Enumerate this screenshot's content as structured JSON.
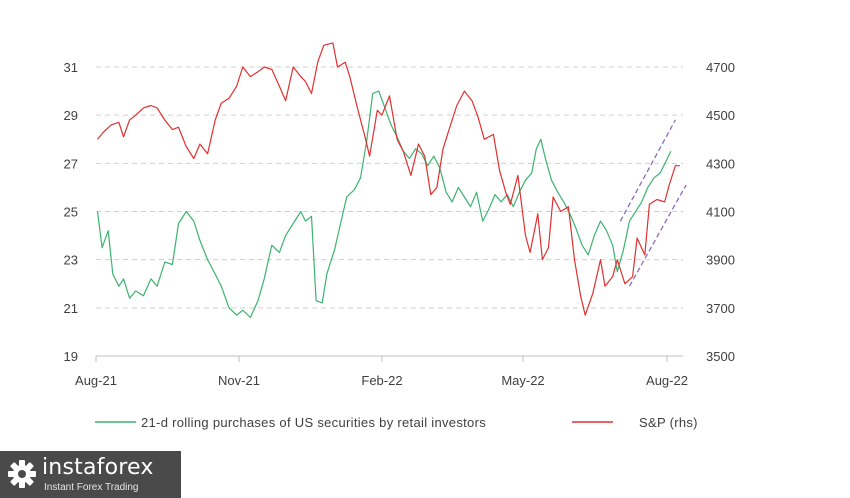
{
  "chart_data": {
    "type": "line",
    "title": "",
    "xlabel": "",
    "x_ticks": [
      "Aug-21",
      "Nov-21",
      "Feb-22",
      "May-22",
      "Aug-22"
    ],
    "y_left": {
      "label": "",
      "ylim": [
        19,
        31
      ],
      "ticks": [
        "19",
        "21",
        "23",
        "25",
        "27",
        "29",
        "31"
      ]
    },
    "y_right": {
      "label": "",
      "ylim": [
        3500,
        4700
      ],
      "ticks": [
        "3500",
        "3700",
        "3900",
        "4100",
        "4300",
        "4500",
        "4700"
      ]
    },
    "grid": "horizontal dashed",
    "legend_position": "bottom",
    "series": [
      {
        "name": "21-d rolling purchases of US securities by retail investors",
        "axis": "left",
        "color": "#3cb371",
        "points": [
          [
            "2021-08-02",
            25.0
          ],
          [
            "2021-08-05",
            23.5
          ],
          [
            "2021-08-09",
            24.2
          ],
          [
            "2021-08-12",
            22.4
          ],
          [
            "2021-08-16",
            21.9
          ],
          [
            "2021-08-19",
            22.2
          ],
          [
            "2021-08-23",
            21.4
          ],
          [
            "2021-08-27",
            21.7
          ],
          [
            "2021-09-01",
            21.5
          ],
          [
            "2021-09-06",
            22.2
          ],
          [
            "2021-09-10",
            21.9
          ],
          [
            "2021-09-15",
            22.9
          ],
          [
            "2021-09-20",
            22.8
          ],
          [
            "2021-09-24",
            24.5
          ],
          [
            "2021-09-29",
            25.0
          ],
          [
            "2021-10-04",
            24.6
          ],
          [
            "2021-10-08",
            23.8
          ],
          [
            "2021-10-13",
            23.0
          ],
          [
            "2021-10-18",
            22.4
          ],
          [
            "2021-10-22",
            21.9
          ],
          [
            "2021-10-27",
            21.0
          ],
          [
            "2021-11-01",
            20.7
          ],
          [
            "2021-11-05",
            20.9
          ],
          [
            "2021-11-10",
            20.6
          ],
          [
            "2021-11-15",
            21.3
          ],
          [
            "2021-11-19",
            22.2
          ],
          [
            "2021-11-24",
            23.6
          ],
          [
            "2021-11-29",
            23.3
          ],
          [
            "2021-12-03",
            24.0
          ],
          [
            "2021-12-08",
            24.5
          ],
          [
            "2021-12-13",
            25.0
          ],
          [
            "2021-12-16",
            24.6
          ],
          [
            "2021-12-20",
            24.8
          ],
          [
            "2021-12-23",
            21.3
          ],
          [
            "2021-12-27",
            21.2
          ],
          [
            "2021-12-30",
            22.4
          ],
          [
            "2022-01-04",
            23.4
          ],
          [
            "2022-01-08",
            24.5
          ],
          [
            "2022-01-12",
            25.6
          ],
          [
            "2022-01-17",
            25.9
          ],
          [
            "2022-01-21",
            26.4
          ],
          [
            "2022-01-25",
            27.9
          ],
          [
            "2022-01-29",
            29.9
          ],
          [
            "2022-02-02",
            30.0
          ],
          [
            "2022-02-06",
            29.3
          ],
          [
            "2022-02-10",
            28.6
          ],
          [
            "2022-02-14",
            28.1
          ],
          [
            "2022-02-18",
            27.5
          ],
          [
            "2022-02-22",
            27.2
          ],
          [
            "2022-02-26",
            27.6
          ],
          [
            "2022-03-02",
            27.4
          ],
          [
            "2022-03-06",
            26.9
          ],
          [
            "2022-03-10",
            27.3
          ],
          [
            "2022-03-14",
            26.8
          ],
          [
            "2022-03-18",
            25.8
          ],
          [
            "2022-03-22",
            25.4
          ],
          [
            "2022-03-26",
            26.0
          ],
          [
            "2022-03-30",
            25.6
          ],
          [
            "2022-04-03",
            25.2
          ],
          [
            "2022-04-07",
            25.8
          ],
          [
            "2022-04-11",
            24.6
          ],
          [
            "2022-04-15",
            25.1
          ],
          [
            "2022-04-19",
            25.7
          ],
          [
            "2022-04-23",
            25.4
          ],
          [
            "2022-04-27",
            25.7
          ],
          [
            "2022-05-01",
            25.2
          ],
          [
            "2022-05-05",
            25.8
          ],
          [
            "2022-05-09",
            26.3
          ],
          [
            "2022-05-13",
            26.6
          ],
          [
            "2022-05-16",
            27.6
          ],
          [
            "2022-05-19",
            28.0
          ],
          [
            "2022-05-22",
            27.2
          ],
          [
            "2022-05-26",
            26.3
          ],
          [
            "2022-05-30",
            25.8
          ],
          [
            "2022-06-03",
            25.4
          ],
          [
            "2022-06-07",
            24.9
          ],
          [
            "2022-06-11",
            24.3
          ],
          [
            "2022-06-15",
            23.6
          ],
          [
            "2022-06-19",
            23.2
          ],
          [
            "2022-06-23",
            24.0
          ],
          [
            "2022-06-27",
            24.6
          ],
          [
            "2022-07-01",
            24.2
          ],
          [
            "2022-07-05",
            23.6
          ],
          [
            "2022-07-08",
            22.5
          ],
          [
            "2022-07-12",
            23.4
          ],
          [
            "2022-07-16",
            24.6
          ],
          [
            "2022-07-20",
            25.0
          ],
          [
            "2022-07-24",
            25.4
          ],
          [
            "2022-07-28",
            26.0
          ],
          [
            "2022-08-01",
            26.4
          ],
          [
            "2022-08-05",
            26.6
          ],
          [
            "2022-08-09",
            27.1
          ],
          [
            "2022-08-12",
            27.5
          ]
        ]
      },
      {
        "name": "S&P (rhs)",
        "axis": "right",
        "color": "#e03030",
        "points": [
          [
            "2021-08-02",
            4400
          ],
          [
            "2021-08-06",
            4430
          ],
          [
            "2021-08-11",
            4460
          ],
          [
            "2021-08-16",
            4470
          ],
          [
            "2021-08-19",
            4410
          ],
          [
            "2021-08-23",
            4480
          ],
          [
            "2021-08-27",
            4500
          ],
          [
            "2021-09-01",
            4530
          ],
          [
            "2021-09-06",
            4540
          ],
          [
            "2021-09-10",
            4530
          ],
          [
            "2021-09-15",
            4480
          ],
          [
            "2021-09-20",
            4440
          ],
          [
            "2021-09-24",
            4450
          ],
          [
            "2021-09-29",
            4370
          ],
          [
            "2021-10-04",
            4320
          ],
          [
            "2021-10-08",
            4380
          ],
          [
            "2021-10-13",
            4340
          ],
          [
            "2021-10-18",
            4480
          ],
          [
            "2021-10-22",
            4550
          ],
          [
            "2021-10-27",
            4570
          ],
          [
            "2021-11-01",
            4620
          ],
          [
            "2021-11-05",
            4700
          ],
          [
            "2021-11-10",
            4660
          ],
          [
            "2021-11-15",
            4680
          ],
          [
            "2021-11-19",
            4700
          ],
          [
            "2021-11-24",
            4690
          ],
          [
            "2021-11-29",
            4620
          ],
          [
            "2021-12-03",
            4560
          ],
          [
            "2021-12-08",
            4700
          ],
          [
            "2021-12-13",
            4660
          ],
          [
            "2021-12-16",
            4640
          ],
          [
            "2021-12-20",
            4590
          ],
          [
            "2021-12-24",
            4720
          ],
          [
            "2021-12-28",
            4790
          ],
          [
            "2022-01-03",
            4800
          ],
          [
            "2022-01-06",
            4700
          ],
          [
            "2022-01-11",
            4720
          ],
          [
            "2022-01-14",
            4660
          ],
          [
            "2022-01-19",
            4530
          ],
          [
            "2022-01-24",
            4410
          ],
          [
            "2022-01-27",
            4330
          ],
          [
            "2022-02-01",
            4520
          ],
          [
            "2022-02-04",
            4500
          ],
          [
            "2022-02-09",
            4580
          ],
          [
            "2022-02-14",
            4400
          ],
          [
            "2022-02-18",
            4350
          ],
          [
            "2022-02-23",
            4250
          ],
          [
            "2022-02-28",
            4380
          ],
          [
            "2022-03-04",
            4330
          ],
          [
            "2022-03-08",
            4170
          ],
          [
            "2022-03-12",
            4200
          ],
          [
            "2022-03-16",
            4360
          ],
          [
            "2022-03-21",
            4460
          ],
          [
            "2022-03-25",
            4540
          ],
          [
            "2022-03-30",
            4600
          ],
          [
            "2022-04-04",
            4560
          ],
          [
            "2022-04-08",
            4490
          ],
          [
            "2022-04-12",
            4400
          ],
          [
            "2022-04-18",
            4420
          ],
          [
            "2022-04-22",
            4270
          ],
          [
            "2022-04-26",
            4180
          ],
          [
            "2022-04-29",
            4130
          ],
          [
            "2022-05-04",
            4250
          ],
          [
            "2022-05-09",
            4000
          ],
          [
            "2022-05-12",
            3930
          ],
          [
            "2022-05-17",
            4090
          ],
          [
            "2022-05-20",
            3900
          ],
          [
            "2022-05-24",
            3950
          ],
          [
            "2022-05-27",
            4160
          ],
          [
            "2022-06-01",
            4100
          ],
          [
            "2022-06-06",
            4120
          ],
          [
            "2022-06-10",
            3900
          ],
          [
            "2022-06-14",
            3750
          ],
          [
            "2022-06-17",
            3670
          ],
          [
            "2022-06-22",
            3760
          ],
          [
            "2022-06-27",
            3900
          ],
          [
            "2022-06-30",
            3790
          ],
          [
            "2022-07-05",
            3830
          ],
          [
            "2022-07-08",
            3900
          ],
          [
            "2022-07-13",
            3800
          ],
          [
            "2022-07-18",
            3830
          ],
          [
            "2022-07-21",
            3990
          ],
          [
            "2022-07-26",
            3920
          ],
          [
            "2022-07-29",
            4130
          ],
          [
            "2022-08-03",
            4150
          ],
          [
            "2022-08-08",
            4140
          ],
          [
            "2022-08-11",
            4210
          ],
          [
            "2022-08-15",
            4290
          ],
          [
            "2022-08-18",
            4290
          ]
        ]
      }
    ],
    "annotations": [
      {
        "type": "dashed-trend-line",
        "color": "#8a6bbf",
        "from": [
          "2022-07-10",
          4060
        ],
        "to": [
          "2022-08-15",
          4480
        ]
      },
      {
        "type": "dashed-trend-line",
        "color": "#8a6bbf",
        "from": [
          "2022-07-16",
          3790
        ],
        "to": [
          "2022-08-22",
          4210
        ]
      }
    ]
  },
  "watermark": {
    "brand": "instaforex",
    "tagline": "Instant Forex Trading"
  }
}
